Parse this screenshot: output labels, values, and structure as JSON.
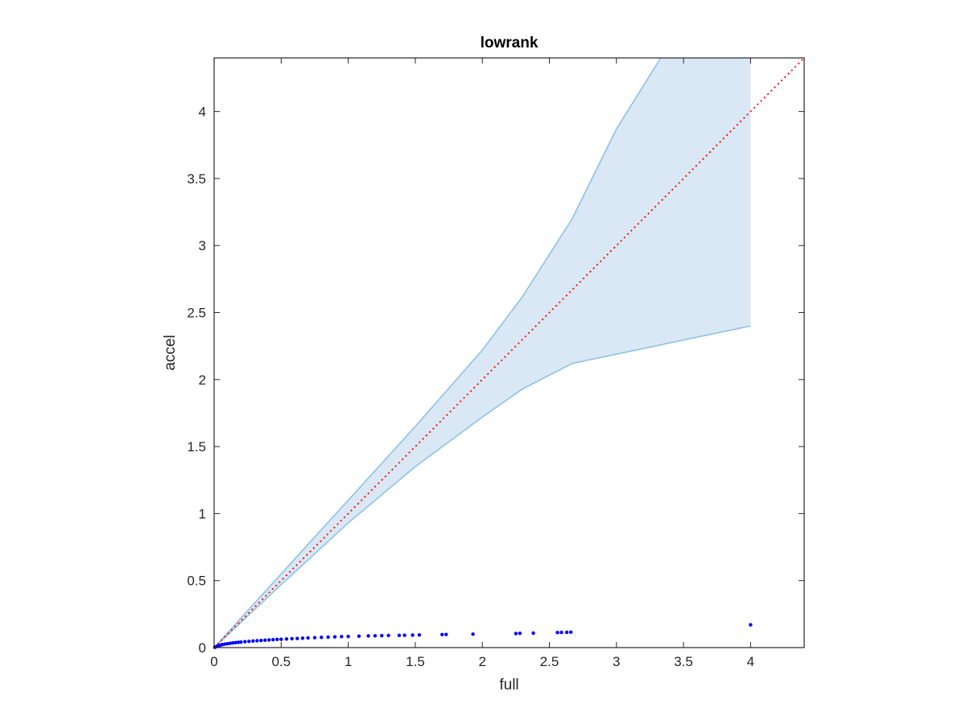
{
  "chart_data": {
    "type": "scatter",
    "title": "lowrank",
    "xlabel": "full",
    "ylabel": "accel",
    "xlim": [
      0,
      4.4
    ],
    "ylim": [
      0,
      4.4
    ],
    "xticks": [
      0,
      0.5,
      1,
      1.5,
      2,
      2.5,
      3,
      3.5,
      4
    ],
    "xtick_labels": [
      "0",
      "0.5",
      "1",
      "1.5",
      "2",
      "2.5",
      "3",
      "3.5",
      "4"
    ],
    "yticks": [
      0,
      0.5,
      1,
      1.5,
      2,
      2.5,
      3,
      3.5,
      4
    ],
    "ytick_labels": [
      "0",
      "0.5",
      "1",
      "1.5",
      "2",
      "2.5",
      "3",
      "3.5",
      "4"
    ],
    "grid": false,
    "band": {
      "color": "#d9e8f4",
      "edge_color": "#8ec2e3",
      "upper": [
        {
          "x": 0,
          "y": 0
        },
        {
          "x": 0.5,
          "y": 0.55
        },
        {
          "x": 1,
          "y": 1.1
        },
        {
          "x": 1.5,
          "y": 1.65
        },
        {
          "x": 2,
          "y": 2.22
        },
        {
          "x": 2.3,
          "y": 2.62
        },
        {
          "x": 2.67,
          "y": 3.2
        },
        {
          "x": 3,
          "y": 3.87
        },
        {
          "x": 3.33,
          "y": 4.4
        },
        {
          "x": 4,
          "y": 4.4
        }
      ],
      "lower": [
        {
          "x": 0,
          "y": 0
        },
        {
          "x": 0.5,
          "y": 0.47
        },
        {
          "x": 1,
          "y": 0.93
        },
        {
          "x": 1.5,
          "y": 1.35
        },
        {
          "x": 2,
          "y": 1.72
        },
        {
          "x": 2.3,
          "y": 1.93
        },
        {
          "x": 2.67,
          "y": 2.12
        },
        {
          "x": 4,
          "y": 2.4
        }
      ]
    },
    "reference_line": {
      "color": "#ff0000",
      "style": "dotted",
      "x": [
        0,
        4.4
      ],
      "y": [
        0,
        4.4
      ]
    },
    "series": [
      {
        "color": "#0000ff",
        "points": [
          {
            "x": 0.005,
            "y": 0.002
          },
          {
            "x": 0.01,
            "y": 0.005
          },
          {
            "x": 0.02,
            "y": 0.009
          },
          {
            "x": 0.03,
            "y": 0.013
          },
          {
            "x": 0.04,
            "y": 0.016
          },
          {
            "x": 0.05,
            "y": 0.019
          },
          {
            "x": 0.06,
            "y": 0.022
          },
          {
            "x": 0.08,
            "y": 0.026
          },
          {
            "x": 0.1,
            "y": 0.029
          },
          {
            "x": 0.12,
            "y": 0.032
          },
          {
            "x": 0.14,
            "y": 0.035
          },
          {
            "x": 0.16,
            "y": 0.037
          },
          {
            "x": 0.18,
            "y": 0.039
          },
          {
            "x": 0.2,
            "y": 0.041
          },
          {
            "x": 0.23,
            "y": 0.044
          },
          {
            "x": 0.26,
            "y": 0.046
          },
          {
            "x": 0.29,
            "y": 0.049
          },
          {
            "x": 0.32,
            "y": 0.051
          },
          {
            "x": 0.35,
            "y": 0.053
          },
          {
            "x": 0.38,
            "y": 0.055
          },
          {
            "x": 0.41,
            "y": 0.057
          },
          {
            "x": 0.44,
            "y": 0.059
          },
          {
            "x": 0.47,
            "y": 0.061
          },
          {
            "x": 0.5,
            "y": 0.062
          },
          {
            "x": 0.54,
            "y": 0.064
          },
          {
            "x": 0.58,
            "y": 0.066
          },
          {
            "x": 0.62,
            "y": 0.068
          },
          {
            "x": 0.66,
            "y": 0.07
          },
          {
            "x": 0.7,
            "y": 0.072
          },
          {
            "x": 0.75,
            "y": 0.074
          },
          {
            "x": 0.8,
            "y": 0.076
          },
          {
            "x": 0.85,
            "y": 0.078
          },
          {
            "x": 0.9,
            "y": 0.08
          },
          {
            "x": 0.95,
            "y": 0.082
          },
          {
            "x": 1.0,
            "y": 0.083
          },
          {
            "x": 1.08,
            "y": 0.085
          },
          {
            "x": 1.15,
            "y": 0.087
          },
          {
            "x": 1.2,
            "y": 0.088
          },
          {
            "x": 1.25,
            "y": 0.089
          },
          {
            "x": 1.3,
            "y": 0.09
          },
          {
            "x": 1.38,
            "y": 0.091
          },
          {
            "x": 1.42,
            "y": 0.092
          },
          {
            "x": 1.48,
            "y": 0.093
          },
          {
            "x": 1.53,
            "y": 0.094
          },
          {
            "x": 1.7,
            "y": 0.097
          },
          {
            "x": 1.73,
            "y": 0.098
          },
          {
            "x": 1.93,
            "y": 0.1
          },
          {
            "x": 2.25,
            "y": 0.105
          },
          {
            "x": 2.28,
            "y": 0.106
          },
          {
            "x": 2.38,
            "y": 0.108
          },
          {
            "x": 2.56,
            "y": 0.112
          },
          {
            "x": 2.59,
            "y": 0.113
          },
          {
            "x": 2.63,
            "y": 0.114
          },
          {
            "x": 2.66,
            "y": 0.115
          },
          {
            "x": 4.0,
            "y": 0.17
          }
        ]
      }
    ]
  }
}
